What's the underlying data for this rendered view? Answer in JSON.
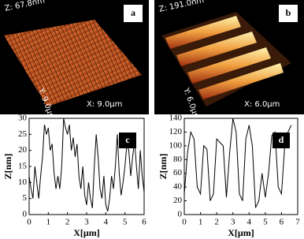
{
  "panels": [
    {
      "label": "a",
      "z": "Z: 67.8nm",
      "y": "Y: 9.0µm",
      "x": "X: 9.0µm"
    },
    {
      "label": "b",
      "z": "Z: 191.0nm",
      "y": "Y: 6.0µm",
      "x": "X: 6.0µm"
    }
  ],
  "chart_data": [
    {
      "type": "line",
      "label": "c",
      "xlabel": "X[µm]",
      "ylabel": "Z[nm]",
      "x": [
        0,
        0.1,
        0.2,
        0.3,
        0.4,
        0.5,
        0.6,
        0.7,
        0.8,
        0.9,
        1.0,
        1.1,
        1.2,
        1.3,
        1.4,
        1.5,
        1.6,
        1.7,
        1.8,
        1.9,
        2.0,
        2.1,
        2.2,
        2.3,
        2.4,
        2.5,
        2.6,
        2.7,
        2.8,
        2.9,
        3.0,
        3.1,
        3.2,
        3.3,
        3.4,
        3.5,
        3.6,
        3.7,
        3.8,
        3.9,
        4.0,
        4.1,
        4.2,
        4.3,
        4.4,
        4.5,
        4.6,
        4.7,
        4.8,
        4.9,
        5.0,
        5.1,
        5.2,
        5.3,
        5.4,
        5.5,
        5.6,
        5.7,
        5.8,
        5.9,
        6.0
      ],
      "series": [
        {
          "color": "#000000",
          "values": [
            12,
            8,
            5,
            15,
            10,
            5,
            12,
            18,
            28,
            25,
            27,
            20,
            22,
            13,
            8,
            12,
            8,
            15,
            30,
            27,
            25,
            28,
            20,
            24,
            18,
            22,
            12,
            8,
            15,
            6,
            3,
            10,
            5,
            2,
            15,
            25,
            18,
            8,
            5,
            12,
            3,
            1,
            5,
            12,
            8,
            15,
            25,
            13,
            6,
            10,
            15,
            22,
            20,
            12,
            18,
            23,
            15,
            8,
            20,
            12,
            7
          ]
        }
      ],
      "xlim": [
        0,
        6
      ],
      "ylim": [
        0,
        30
      ],
      "xticks": [
        0,
        1,
        2,
        3,
        4,
        5,
        6
      ],
      "yticks": [
        0,
        5,
        10,
        15,
        20,
        25,
        30
      ]
    },
    {
      "type": "line",
      "label": "d",
      "xlabel": "X[µm]",
      "ylabel": "Z[nm]",
      "x": [
        0,
        0.2,
        0.4,
        0.6,
        0.8,
        1.0,
        1.2,
        1.4,
        1.6,
        1.8,
        2.0,
        2.2,
        2.4,
        2.6,
        2.8,
        3.0,
        3.2,
        3.4,
        3.6,
        3.8,
        4.0,
        4.2,
        4.4,
        4.6,
        4.8,
        5.0,
        5.2,
        5.4,
        5.6,
        5.8,
        6.0,
        6.2,
        6.4,
        6.6
      ],
      "series": [
        {
          "color": "#000000",
          "values": [
            30,
            90,
            120,
            110,
            40,
            30,
            100,
            95,
            20,
            30,
            110,
            105,
            100,
            25,
            90,
            140,
            120,
            30,
            20,
            110,
            130,
            100,
            10,
            20,
            60,
            25,
            60,
            115,
            120,
            40,
            30,
            100,
            120,
            130
          ]
        }
      ],
      "xlim": [
        0,
        7
      ],
      "ylim": [
        0,
        140
      ],
      "xticks": [
        0,
        1,
        2,
        3,
        4,
        5,
        6,
        7
      ],
      "yticks": [
        0,
        20,
        40,
        60,
        80,
        100,
        120,
        140
      ]
    }
  ]
}
